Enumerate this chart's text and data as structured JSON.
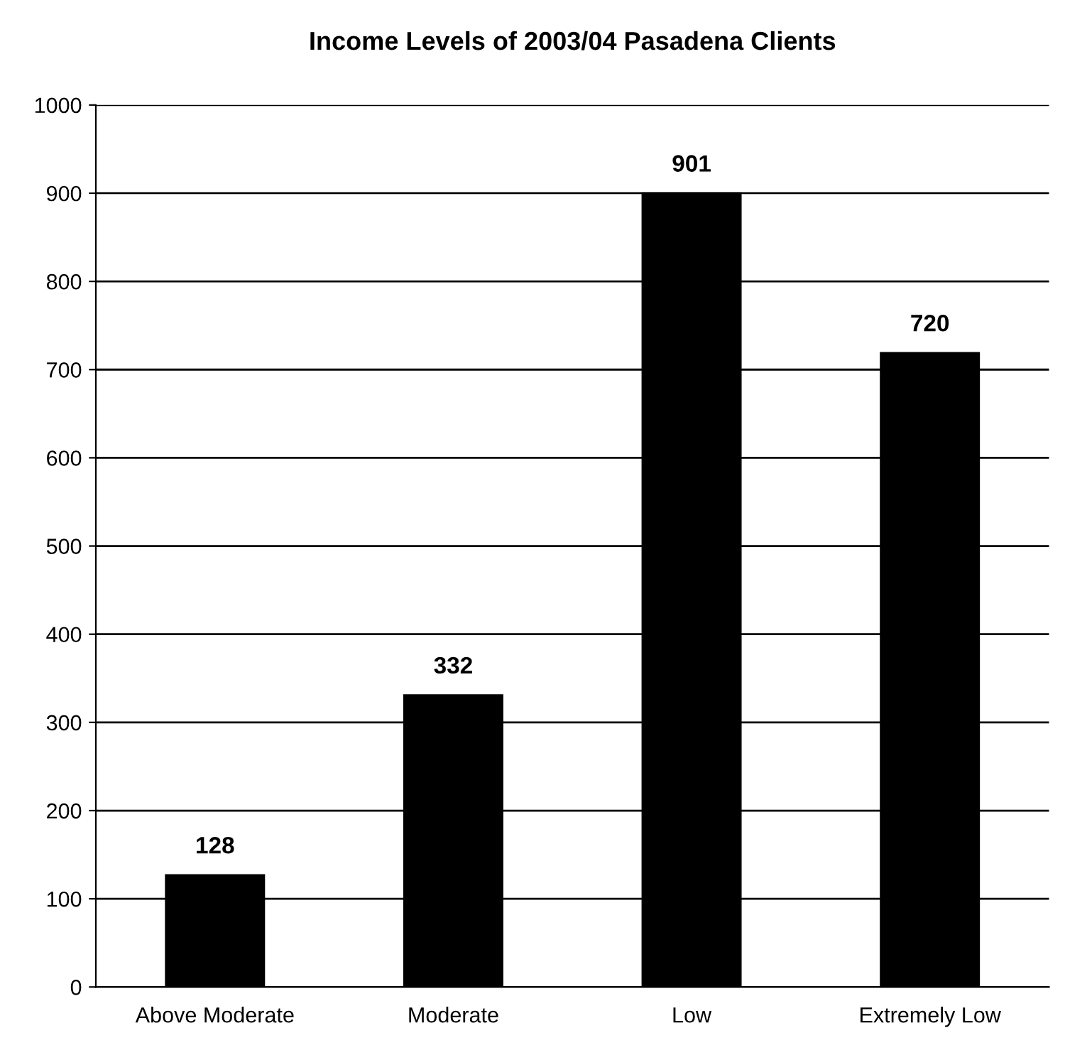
{
  "chart_data": {
    "type": "bar",
    "title": "Income Levels of 2003/04 Pasadena Clients",
    "categories": [
      "Above Moderate",
      "Moderate",
      "Low",
      "Extremely Low"
    ],
    "values": [
      128,
      332,
      901,
      720
    ],
    "color": "#000000",
    "ylim": [
      0,
      1000
    ],
    "yticks": [
      0,
      100,
      200,
      300,
      400,
      500,
      600,
      700,
      800,
      900,
      1000
    ],
    "grid": "y",
    "data_labels": true
  }
}
